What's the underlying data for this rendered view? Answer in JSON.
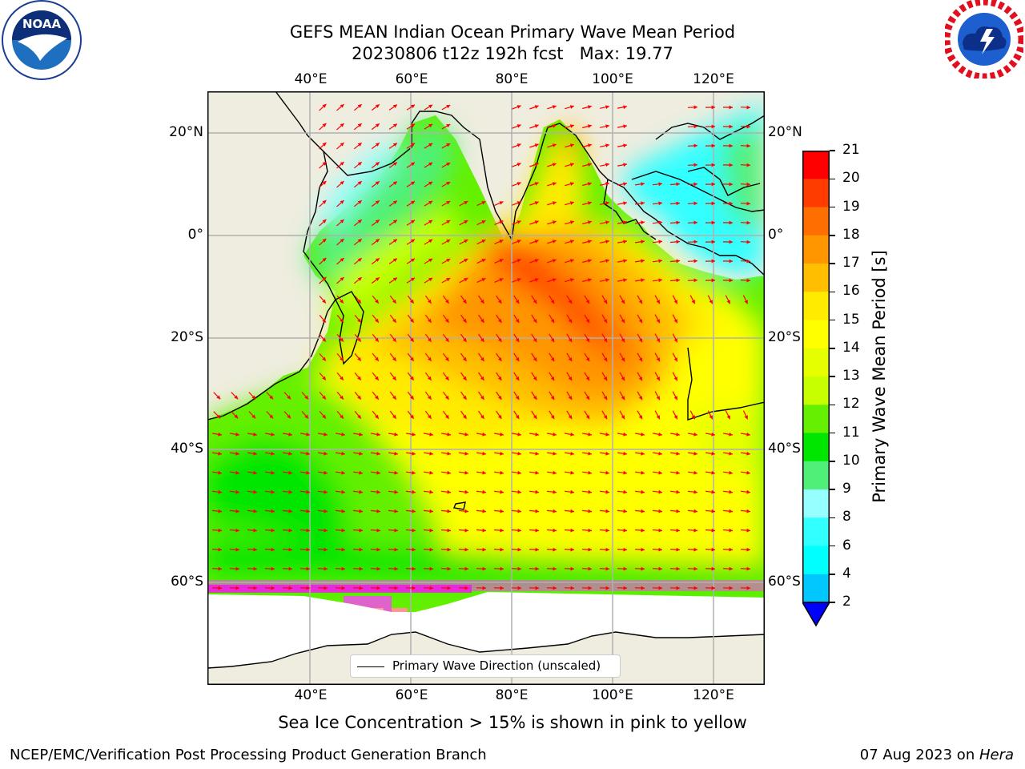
{
  "title": {
    "line1": "GEFS MEAN Indian Ocean Primary Wave Mean Period",
    "line2": "20230806 t12z 192h fcst   Max: 19.77"
  },
  "logos": {
    "left": {
      "text": "NOAA",
      "ring": "NATIONAL OCEANIC AND ATMOSPHERIC ADMINISTRATION · U.S. DEPARTMENT OF COMMERCE"
    },
    "right": {
      "ring": "NATIONAL WEATHER SERVICE"
    }
  },
  "map": {
    "lon_labels": [
      "40°E",
      "60°E",
      "80°E",
      "100°E",
      "120°E"
    ],
    "lat_labels": [
      "20°N",
      "0°",
      "20°S",
      "40°S",
      "60°S"
    ],
    "lon_range": [
      20,
      130
    ],
    "lat_range": [
      -78,
      27
    ],
    "legend_label": "Primary Wave Direction (unscaled)",
    "colors": {
      "land": "#efeddf",
      "ice_free": "#ffffff",
      "arrow": "#ff0000",
      "grid": "#b0b0b0"
    }
  },
  "colorbar": {
    "label": "Primary Wave Mean Period [s]",
    "ticks": [
      "2",
      "4",
      "6",
      "8",
      "9",
      "10",
      "11",
      "12",
      "13",
      "14",
      "15",
      "16",
      "17",
      "18",
      "19",
      "20",
      "21"
    ],
    "colors": [
      "#0064ff",
      "#00c8ff",
      "#00ffff",
      "#32ffff",
      "#96ffff",
      "#50f078",
      "#00e600",
      "#64f000",
      "#c8ff00",
      "#e6ff00",
      "#ffff00",
      "#ffeb00",
      "#ffbe00",
      "#ff9600",
      "#ff6e00",
      "#ff3c00",
      "#ff0000"
    ],
    "extend_color": "#0000ff"
  },
  "caption": "Sea Ice Concentration > 15% is shown in pink to yellow",
  "footer": {
    "left": "NCEP/EMC/Verification Post Processing Product Generation Branch",
    "right_date": "07 Aug 2023 on ",
    "right_machine": "Hera"
  }
}
